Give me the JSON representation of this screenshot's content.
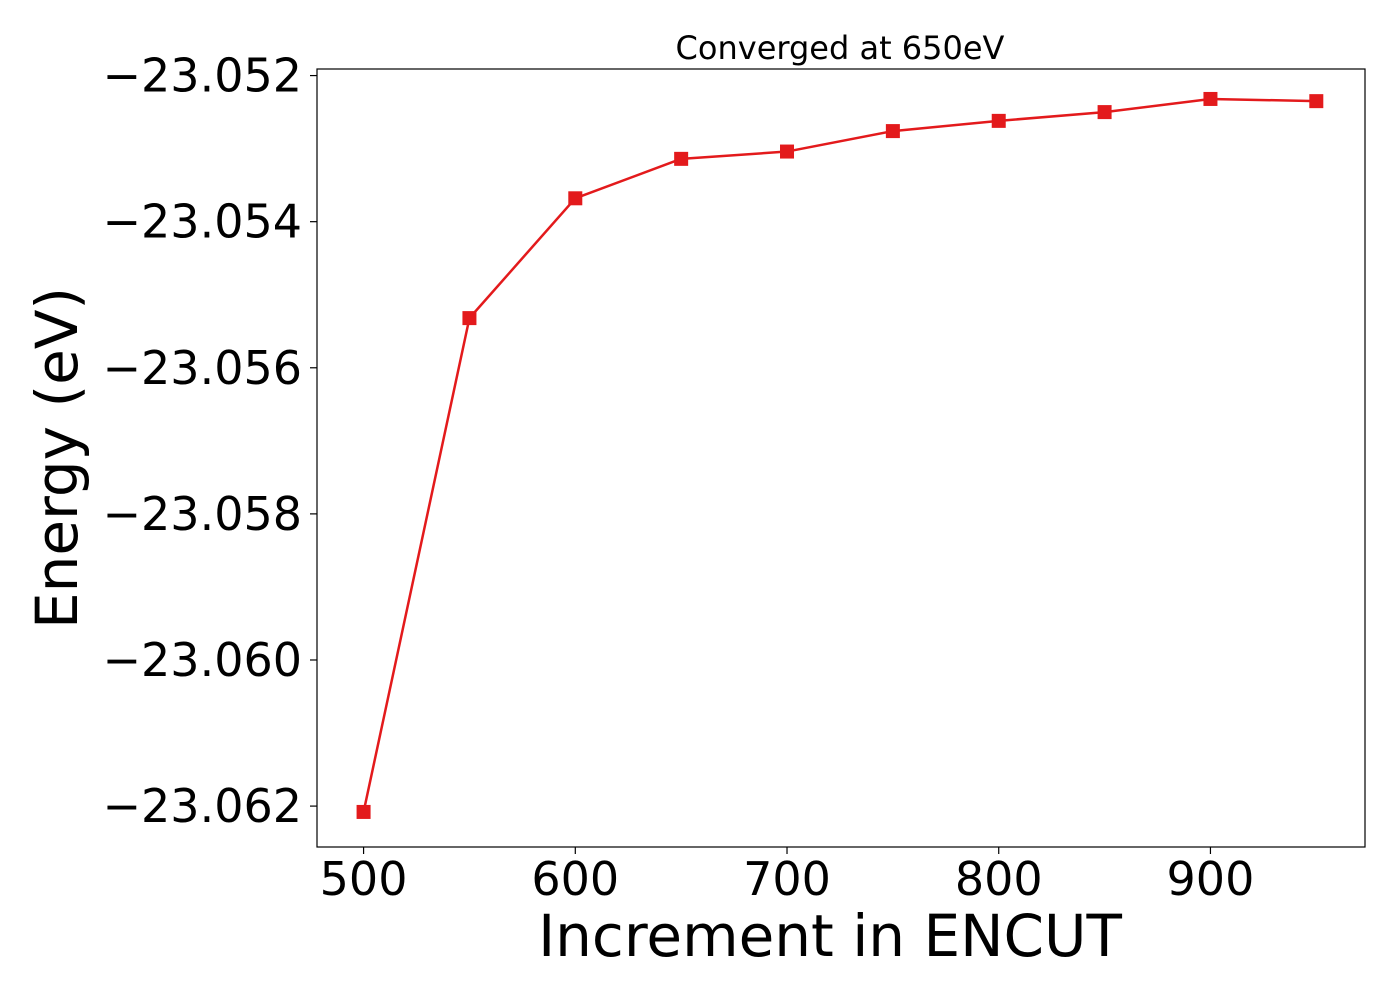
{
  "chart_data": {
    "type": "line",
    "title": "Converged at 650eV",
    "xlabel": "Increment in ENCUT",
    "ylabel": "Energy (eV)",
    "x": [
      500,
      550,
      600,
      650,
      700,
      750,
      800,
      850,
      900,
      950
    ],
    "series": [
      {
        "values": [
          -23.06208,
          -23.05532,
          -23.05368,
          -23.05314,
          -23.05304,
          -23.05276,
          -23.05262,
          -23.0525,
          -23.05232,
          -23.05235
        ],
        "color": "#e31a1c",
        "marker": "square"
      }
    ],
    "xlim": [
      478,
      973
    ],
    "ylim": [
      -23.06256,
      -23.05191
    ],
    "xticks": [
      500,
      600,
      700,
      800,
      900
    ],
    "xtick_labels": [
      "500",
      "600",
      "700",
      "800",
      "900"
    ],
    "yticks": [
      -23.052,
      -23.054,
      -23.056,
      -23.058,
      -23.06,
      -23.062
    ],
    "ytick_labels": [
      "−23.052",
      "−23.054",
      "−23.056",
      "−23.058",
      "−23.060",
      "−23.062"
    ],
    "grid": false,
    "legend": "none"
  }
}
